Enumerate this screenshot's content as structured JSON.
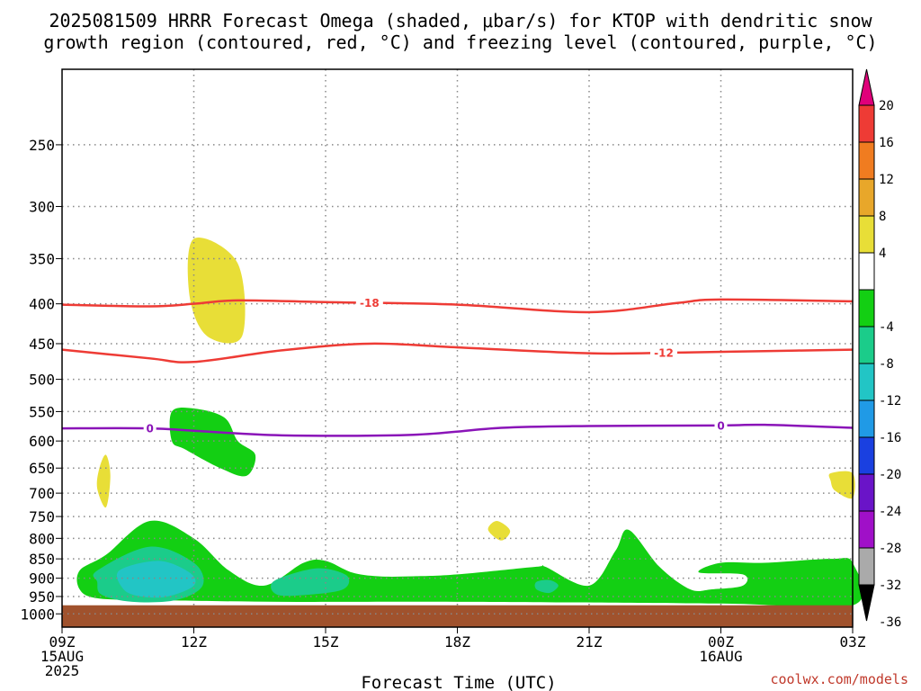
{
  "title": {
    "line1": "2025081509 HRRR Forecast Omega (shaded, μbar/s) for KTOP with dendritic snow",
    "line2": "growth region (contoured, red, °C) and freezing level (contoured, purple, °C)"
  },
  "xlabel": "Forecast Time (UTC)",
  "credit": "coolwx.com/models",
  "colors": {
    "dgz": "#ee3b35",
    "freezing": "#8a14b8",
    "ground": "#a0522d",
    "grid": "#888888"
  },
  "chart_data": {
    "type": "heatmap",
    "x_axis": {
      "range": [
        "2025-08-15T09Z",
        "2025-08-16T03Z"
      ],
      "ticks": [
        {
          "label": "09Z",
          "sub": [
            "15AUG",
            "2025"
          ],
          "hour": 0
        },
        {
          "label": "12Z",
          "sub": [],
          "hour": 3
        },
        {
          "label": "15Z",
          "sub": [],
          "hour": 6
        },
        {
          "label": "18Z",
          "sub": [],
          "hour": 9
        },
        {
          "label": "21Z",
          "sub": [],
          "hour": 12
        },
        {
          "label": "00Z",
          "sub": [
            "16AUG"
          ],
          "hour": 15
        },
        {
          "label": "03Z",
          "sub": [],
          "hour": 18
        }
      ]
    },
    "y_axis": {
      "units": "mb",
      "scale": "log",
      "reversed": true,
      "top": 200,
      "bottom": 1040,
      "ticks": [
        250,
        300,
        350,
        400,
        450,
        500,
        550,
        600,
        650,
        700,
        750,
        800,
        850,
        900,
        950,
        1000
      ]
    },
    "colorbar": {
      "labels": [
        "20",
        "16",
        "12",
        "8",
        "4",
        "-4",
        "-8",
        "-12",
        "-16",
        "-20",
        "-24",
        "-28",
        "-32",
        "-36"
      ],
      "colors": [
        "#ee3b35",
        "#f07c20",
        "#e8a72a",
        "#e8de37",
        "#ffffff",
        "#13cf13",
        "#1bcc8a",
        "#22c5c5",
        "#209ae6",
        "#1a40e0",
        "#6a14c8",
        "#a010c8",
        "#aaaaaa"
      ],
      "top_arrow": "#e0007a",
      "bottom_arrow": "#000000"
    },
    "contours": [
      {
        "name": "-18",
        "color": "#ee3b35",
        "label_hour": 7.0,
        "points": [
          [
            0,
            401
          ],
          [
            2,
            403
          ],
          [
            3,
            400
          ],
          [
            4,
            396
          ],
          [
            6,
            398
          ],
          [
            9,
            401
          ],
          [
            12,
            410
          ],
          [
            14,
            399
          ],
          [
            15,
            395
          ],
          [
            18,
            397
          ]
        ]
      },
      {
        "name": "-12",
        "color": "#ee3b35",
        "label_hour": 13.7,
        "points": [
          [
            0,
            458
          ],
          [
            2,
            470
          ],
          [
            3,
            475
          ],
          [
            5,
            459
          ],
          [
            7,
            450
          ],
          [
            9,
            455
          ],
          [
            12,
            463
          ],
          [
            14,
            462
          ],
          [
            16,
            460
          ],
          [
            18,
            458
          ]
        ]
      },
      {
        "name": "0",
        "color": "#8a14b8",
        "label_hour": 2.0,
        "points": [
          [
            0,
            578
          ],
          [
            2,
            578
          ],
          [
            3,
            582
          ],
          [
            5,
            590
          ],
          [
            8,
            589
          ],
          [
            10,
            577
          ],
          [
            12,
            574
          ],
          [
            15,
            573
          ],
          [
            16,
            572
          ],
          [
            18,
            577
          ]
        ]
      },
      {
        "name": "0",
        "color": "#8a14b8",
        "label_hour": 15.0,
        "points": []
      }
    ],
    "regions": [
      {
        "value": "4 to 8",
        "color": "#e8de37",
        "points": [
          [
            3,
            330
          ],
          [
            4,
            355
          ],
          [
            4.1,
            440
          ],
          [
            3.3,
            440
          ],
          [
            2.9,
            390
          ]
        ]
      },
      {
        "value": "4 to 8",
        "color": "#e8de37",
        "points": [
          [
            1,
            625
          ],
          [
            1.1,
            665
          ],
          [
            1,
            730
          ],
          [
            0.8,
            690
          ],
          [
            0.85,
            650
          ]
        ]
      },
      {
        "value": "4 to 8",
        "color": "#e8de37",
        "points": [
          [
            9.9,
            760
          ],
          [
            10.2,
            782
          ],
          [
            10,
            805
          ],
          [
            9.7,
            780
          ]
        ]
      },
      {
        "value": "4 to 8",
        "color": "#e8de37",
        "points": [
          [
            17.5,
            660
          ],
          [
            18,
            660
          ],
          [
            18,
            710
          ],
          [
            17.6,
            695
          ],
          [
            17.5,
            675
          ]
        ]
      },
      {
        "value": "-4 to -8",
        "color": "#13cf13",
        "points": [
          [
            0.4,
            880
          ],
          [
            1,
            840
          ],
          [
            2,
            760
          ],
          [
            3,
            800
          ],
          [
            3.8,
            880
          ],
          [
            4.6,
            920
          ],
          [
            5.5,
            860
          ],
          [
            6,
            855
          ],
          [
            6.6,
            885
          ],
          [
            7.2,
            895
          ],
          [
            8,
            895
          ],
          [
            9,
            890
          ],
          [
            10.8,
            870
          ],
          [
            11,
            870
          ],
          [
            12,
            920
          ],
          [
            12.6,
            830
          ],
          [
            12.9,
            780
          ],
          [
            13.6,
            870
          ],
          [
            14.3,
            930
          ],
          [
            14.8,
            930
          ],
          [
            15.5,
            920
          ],
          [
            15.5,
            890
          ],
          [
            14.5,
            885
          ],
          [
            15,
            860
          ],
          [
            16,
            860
          ],
          [
            17.5,
            850
          ],
          [
            18,
            860
          ],
          [
            18,
            975
          ],
          [
            15,
            970
          ],
          [
            9,
            965
          ],
          [
            5,
            965
          ],
          [
            2,
            960
          ],
          [
            0.8,
            955
          ],
          [
            0.4,
            930
          ]
        ]
      },
      {
        "value": "-4 to -8",
        "color": "#13cf13",
        "points": [
          [
            2.5,
            550
          ],
          [
            3,
            545
          ],
          [
            3.7,
            560
          ],
          [
            4,
            600
          ],
          [
            4.4,
            625
          ],
          [
            4.2,
            665
          ],
          [
            3.6,
            650
          ],
          [
            2.8,
            615
          ],
          [
            2.5,
            600
          ]
        ]
      },
      {
        "value": "-8 to -12",
        "color": "#1bcc8a",
        "points": [
          [
            0.8,
            880
          ],
          [
            2,
            820
          ],
          [
            3,
            860
          ],
          [
            3.2,
            920
          ],
          [
            2.6,
            960
          ],
          [
            1.6,
            965
          ],
          [
            0.9,
            945
          ],
          [
            0.8,
            910
          ]
        ]
      },
      {
        "value": "-8 to -12",
        "color": "#1bcc8a",
        "points": [
          [
            4.8,
            910
          ],
          [
            5.5,
            880
          ],
          [
            6,
            875
          ],
          [
            6.5,
            895
          ],
          [
            6.4,
            930
          ],
          [
            5.6,
            945
          ],
          [
            4.9,
            945
          ]
        ]
      },
      {
        "value": "-8 to -12",
        "color": "#1bcc8a",
        "points": [
          [
            10.8,
            910
          ],
          [
            11.1,
            905
          ],
          [
            11.3,
            920
          ],
          [
            11.1,
            940
          ],
          [
            10.8,
            930
          ]
        ]
      },
      {
        "value": "-12 to -16",
        "color": "#22c5c5",
        "points": [
          [
            1.3,
            880
          ],
          [
            2.2,
            855
          ],
          [
            2.9,
            885
          ],
          [
            3,
            920
          ],
          [
            2.4,
            950
          ],
          [
            1.8,
            950
          ],
          [
            1.4,
            930
          ]
        ]
      }
    ]
  }
}
